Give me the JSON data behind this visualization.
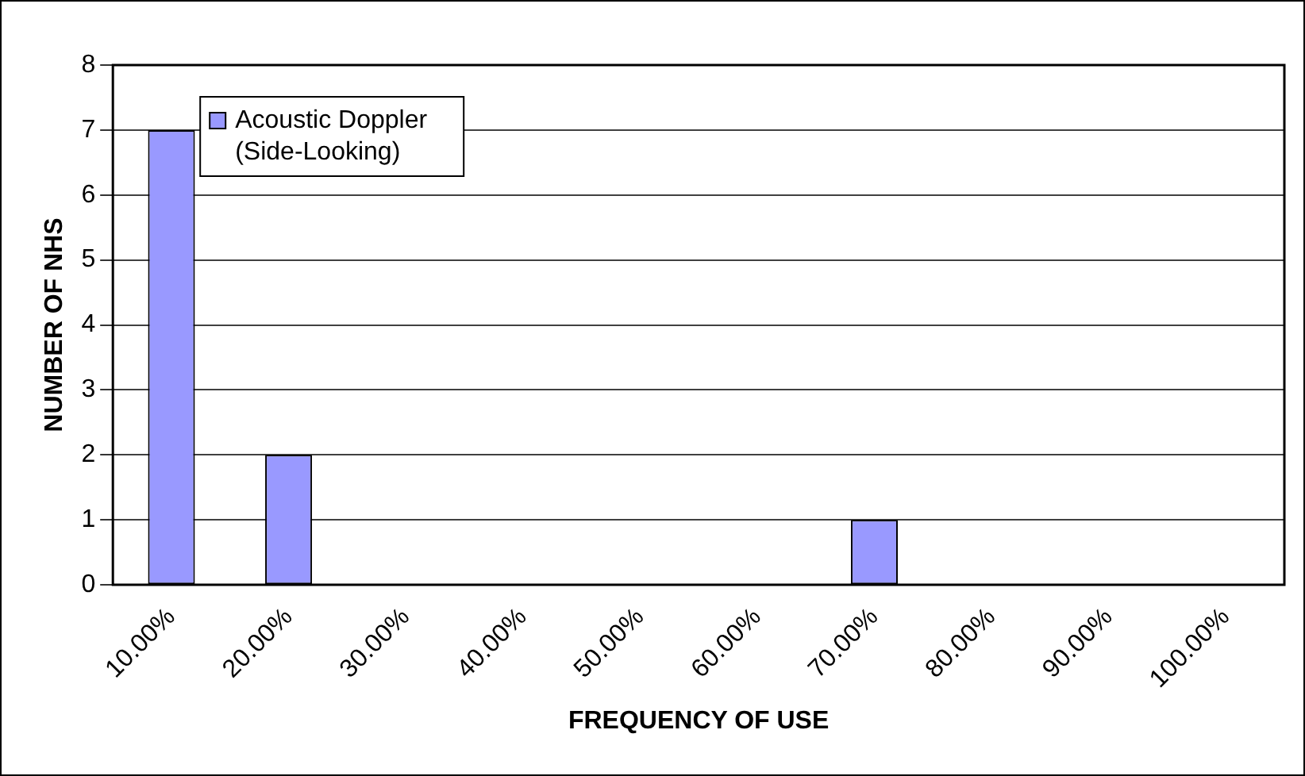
{
  "chart_data": {
    "type": "bar",
    "xlabel": "FREQUENCY OF USE",
    "ylabel": "NUMBER OF NHS",
    "categories": [
      "10.00%",
      "20.00%",
      "30.00%",
      "40.00%",
      "50.00%",
      "60.00%",
      "70.00%",
      "80.00%",
      "90.00%",
      "100.00%"
    ],
    "series": [
      {
        "name": "Acoustic Doppler (Side-Looking)",
        "color": "#9999ff",
        "values": [
          7,
          2,
          0,
          0,
          0,
          0,
          1,
          0,
          0,
          0
        ]
      }
    ],
    "ylim": [
      0,
      8
    ],
    "yticks": [
      0,
      1,
      2,
      3,
      4,
      5,
      6,
      7,
      8
    ],
    "grid": "y",
    "legend": "top left"
  }
}
